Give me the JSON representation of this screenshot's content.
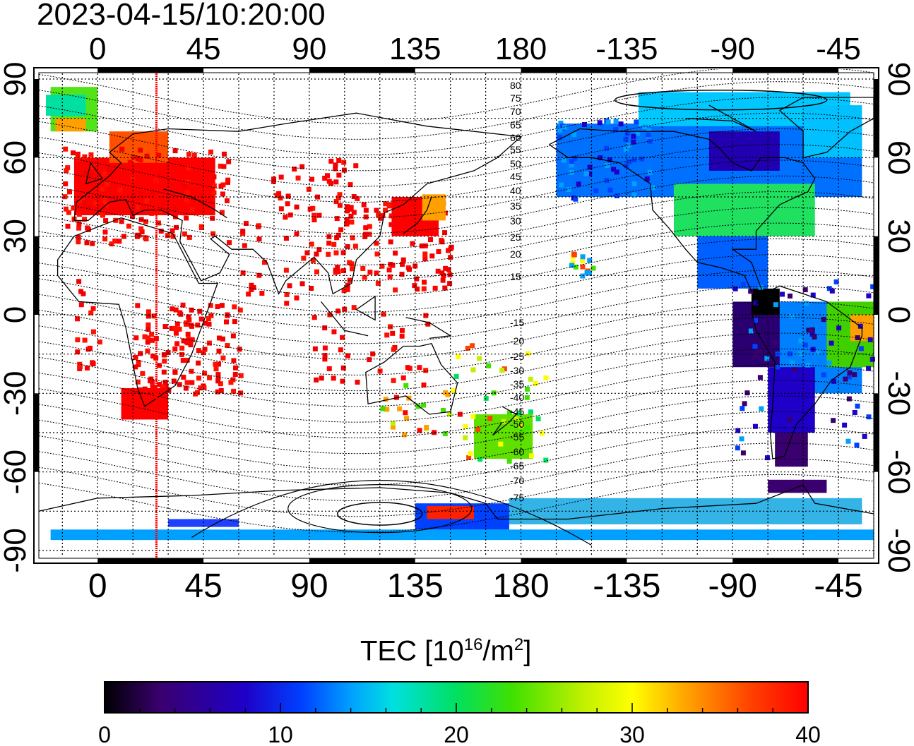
{
  "timestamp": "2023-04-15/10:20:00",
  "top_axis_labels": [
    "0",
    "45",
    "90",
    "135",
    "180",
    "-135",
    "-90",
    "-45"
  ],
  "bottom_axis_labels": [
    "0",
    "45",
    "90",
    "135",
    "180",
    "-135",
    "-90",
    "-45"
  ],
  "left_axis_labels": [
    "90",
    "60",
    "30",
    "0",
    "-30",
    "-60",
    "-90"
  ],
  "right_axis_labels": [
    "90",
    "60",
    "30",
    "0",
    "-30",
    "-60",
    "-90"
  ],
  "contour_labels": [
    "80",
    "75",
    "70",
    "65",
    "60",
    "55",
    "50",
    "45",
    "40",
    "35",
    "30",
    "25",
    "20",
    "15",
    "-15",
    "-20",
    "-25",
    "-30",
    "-35",
    "-40",
    "-45",
    "-50",
    "-55",
    "-60",
    "-65",
    "-70",
    "-75"
  ],
  "colorbar": {
    "title_main": "TEC  [10",
    "title_sup1": "16",
    "title_mid": "/m",
    "title_sup2": "2",
    "title_end": "]",
    "tick_labels": [
      "0",
      "10",
      "20",
      "30",
      "40"
    ],
    "range": [
      0,
      40
    ],
    "colormap": [
      "#000000",
      "#3a0070",
      "#1e00c8",
      "#0040ff",
      "#00a0ff",
      "#00e0e0",
      "#00e060",
      "#40e000",
      "#c0f000",
      "#ffff00",
      "#ffa000",
      "#ff4000",
      "#ff0000"
    ]
  },
  "colors": {
    "terminator": "#ff0000",
    "coastline": "#000000",
    "grid": "#000000"
  },
  "overlay": {
    "terminator_longitude": 25
  }
}
